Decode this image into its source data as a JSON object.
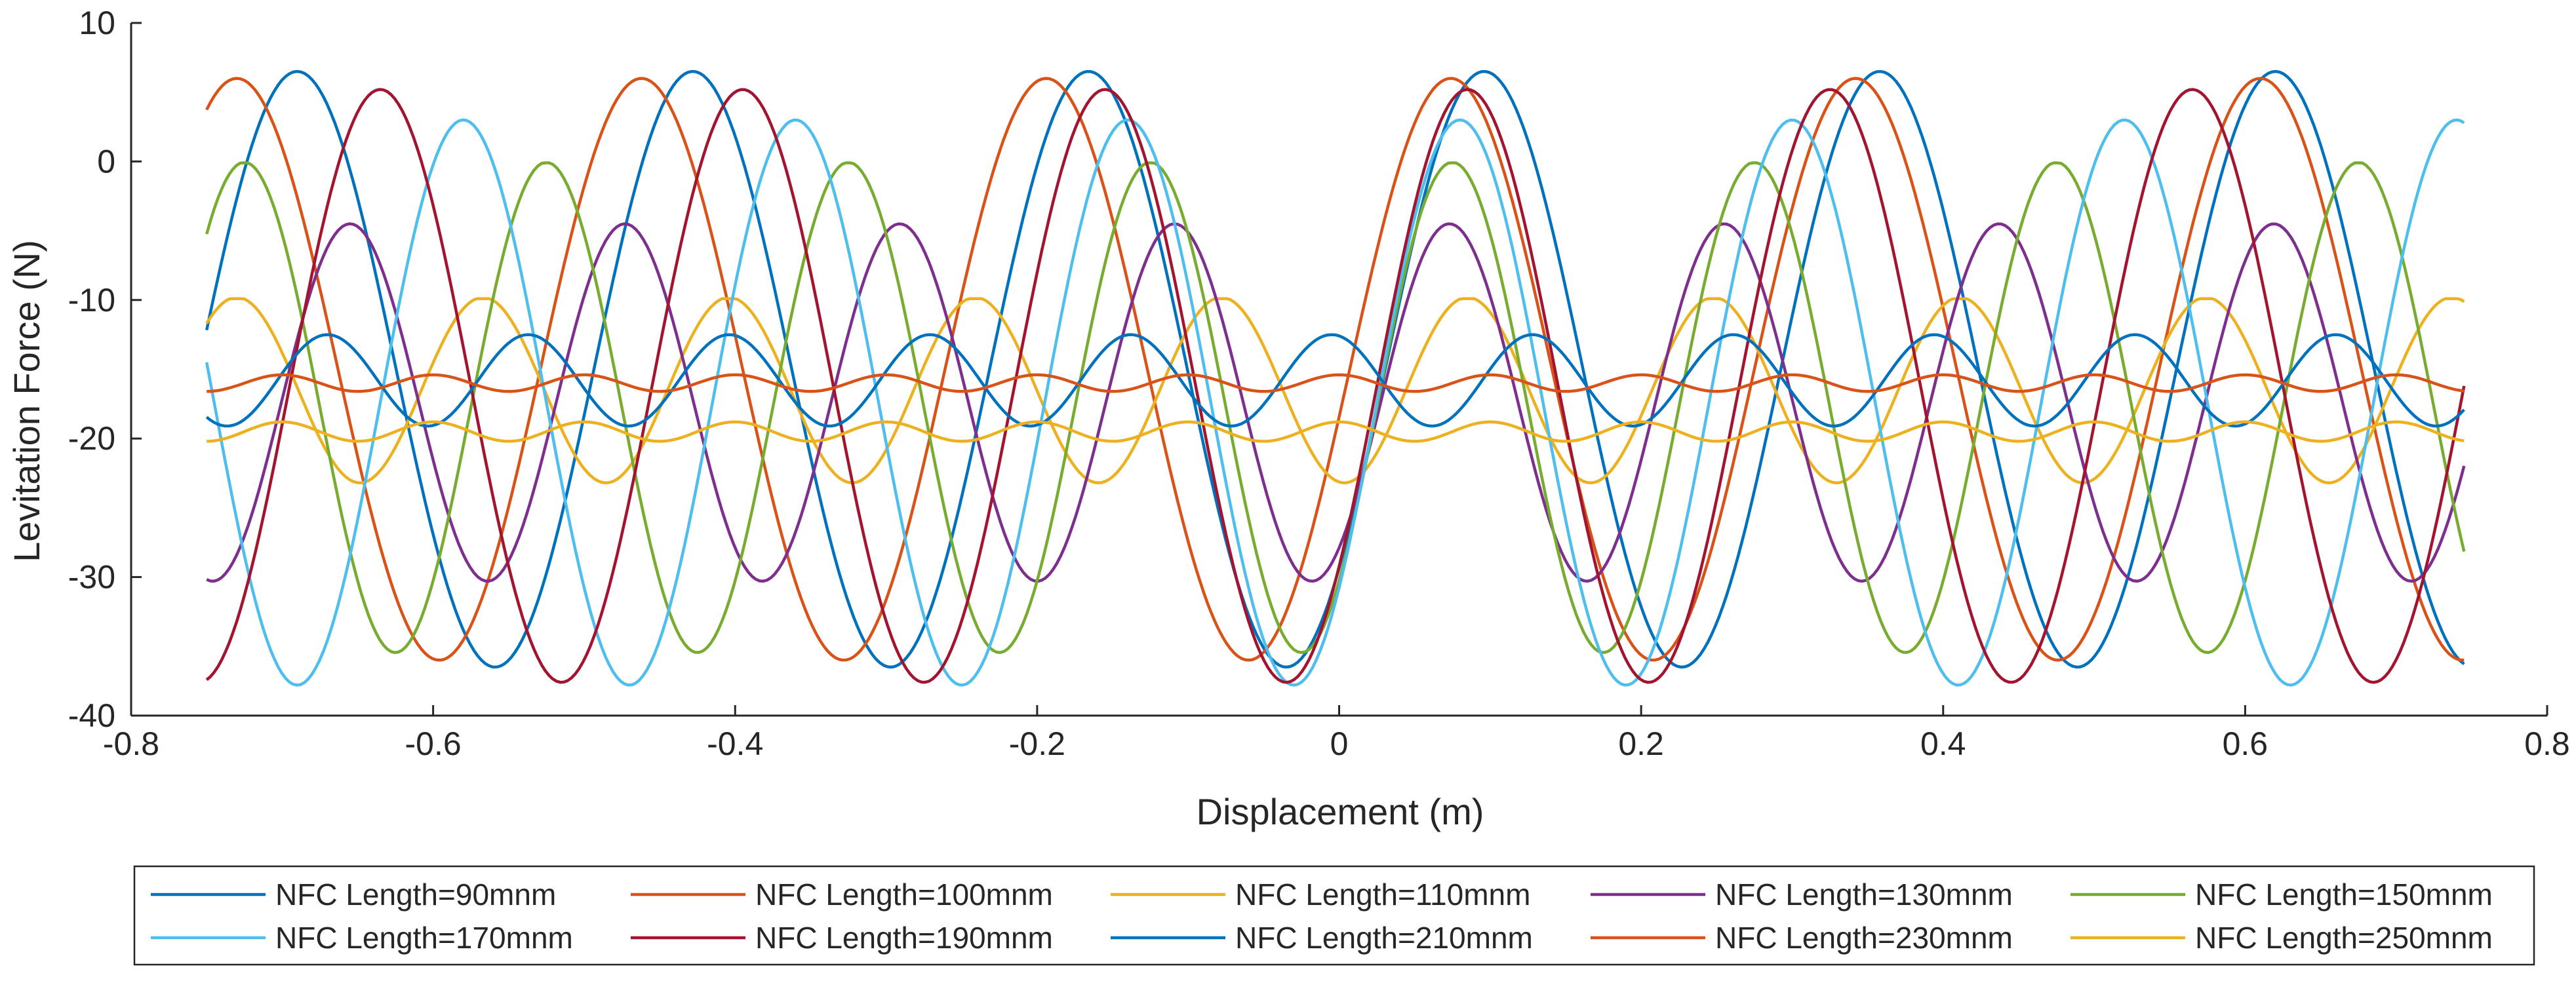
{
  "chart_data": {
    "type": "line",
    "title": "",
    "xlabel": "Displacement (m)",
    "ylabel": "Levitation Force (N)",
    "xlim": [
      -0.8,
      0.8
    ],
    "ylim": [
      -40,
      10
    ],
    "xticks": [
      -0.8,
      -0.6,
      -0.4,
      -0.2,
      0,
      0.2,
      0.4,
      0.6,
      0.8
    ],
    "xtick_labels": [
      "-0.8",
      "-0.6",
      "-0.4",
      "-0.2",
      "0",
      "0.2",
      "0.4",
      "0.6",
      "0.8"
    ],
    "yticks": [
      -40,
      -30,
      -20,
      -10,
      0,
      10
    ],
    "ytick_labels": [
      "-40",
      "-30",
      "-20",
      "-10",
      "0",
      "10"
    ],
    "grid": false,
    "legend_position": "bottom",
    "x_range": [
      -0.75,
      0.745
    ],
    "series": [
      {
        "name": "NFC Length=90mnm",
        "color": "#0072BD",
        "center": -15.0,
        "amplitude": 21.5,
        "period": 0.262,
        "peaks_x": [
          -0.69,
          -0.43,
          -0.17,
          0.09,
          0.355,
          0.615
        ],
        "peak_value": 6.8,
        "trough_value": -36.8
      },
      {
        "name": "NFC Length=100mnm",
        "color": "#D95319",
        "center": -15.0,
        "amplitude": 21.0,
        "period": 0.268,
        "peaks_x": [
          -0.73,
          -0.45,
          -0.175,
          0.1,
          0.4,
          0.67
        ],
        "peak_value": 7.0,
        "trough_value": -37.0
      },
      {
        "name": "NFC Length=110mnm",
        "color": "#EDB120",
        "center": -16.5,
        "amplitude": 6.7,
        "period": 0.163,
        "peaks_x": [
          -0.73,
          -0.57,
          -0.41,
          -0.25,
          -0.09,
          0.07,
          0.23,
          0.39,
          0.55,
          0.71
        ],
        "peak_value": -9.9,
        "trough_value": -23.4
      },
      {
        "name": "NFC Length=130mnm",
        "color": "#7E2F8E",
        "center": -17.4,
        "amplitude": 12.9,
        "period": 0.182,
        "peaks_x": [
          -0.655,
          -0.473,
          -0.291,
          -0.109,
          0.073,
          0.255,
          0.437,
          0.619
        ],
        "peak_value": -4.3,
        "trough_value": -30.3
      },
      {
        "name": "NFC Length=150mnm",
        "color": "#77AC30",
        "center": -17.75,
        "amplitude": 17.7,
        "period": 0.2,
        "peaks_x": [
          -0.725,
          -0.525,
          -0.325,
          -0.125,
          0.075,
          0.275,
          0.475,
          0.675
        ],
        "peak_value": -0.1,
        "trough_value": -35.5
      },
      {
        "name": "NFC Length=170mnm",
        "color": "#4DBEEE",
        "center": -17.4,
        "amplitude": 20.4,
        "period": 0.22,
        "peaks_x": [
          -0.58,
          -0.36,
          -0.14,
          0.08,
          0.3,
          0.52,
          0.74
        ],
        "peak_value": 3.0,
        "trough_value": -37.8
      },
      {
        "name": "NFC Length=190mnm",
        "color": "#A2142F",
        "center": -16.2,
        "amplitude": 21.4,
        "period": 0.24,
        "peaks_x": [
          -0.635,
          -0.395,
          -0.155,
          0.085,
          0.325,
          0.565
        ],
        "peak_value": 5.2,
        "trough_value": -37.6
      },
      {
        "name": "NFC Length=210mnm",
        "color": "#0072BD",
        "center": -15.8,
        "amplitude": 3.3,
        "period": 0.133,
        "peaks_x": [
          -0.67,
          -0.537,
          -0.404,
          -0.271,
          -0.138,
          -0.005,
          0.128,
          0.261,
          0.394,
          0.527,
          0.66
        ],
        "peak_value": -12.5,
        "trough_value": -19.1
      },
      {
        "name": "NFC Length=230mnm",
        "color": "#D95319",
        "center": -16.0,
        "amplitude": 0.6,
        "period": 0.1,
        "peak_value": -15.4,
        "trough_value": -16.6
      },
      {
        "name": "NFC Length=250mnm",
        "color": "#EDB120",
        "center": -19.5,
        "amplitude": 0.7,
        "period": 0.1,
        "peak_value": -18.8,
        "trough_value": -20.2
      }
    ]
  }
}
